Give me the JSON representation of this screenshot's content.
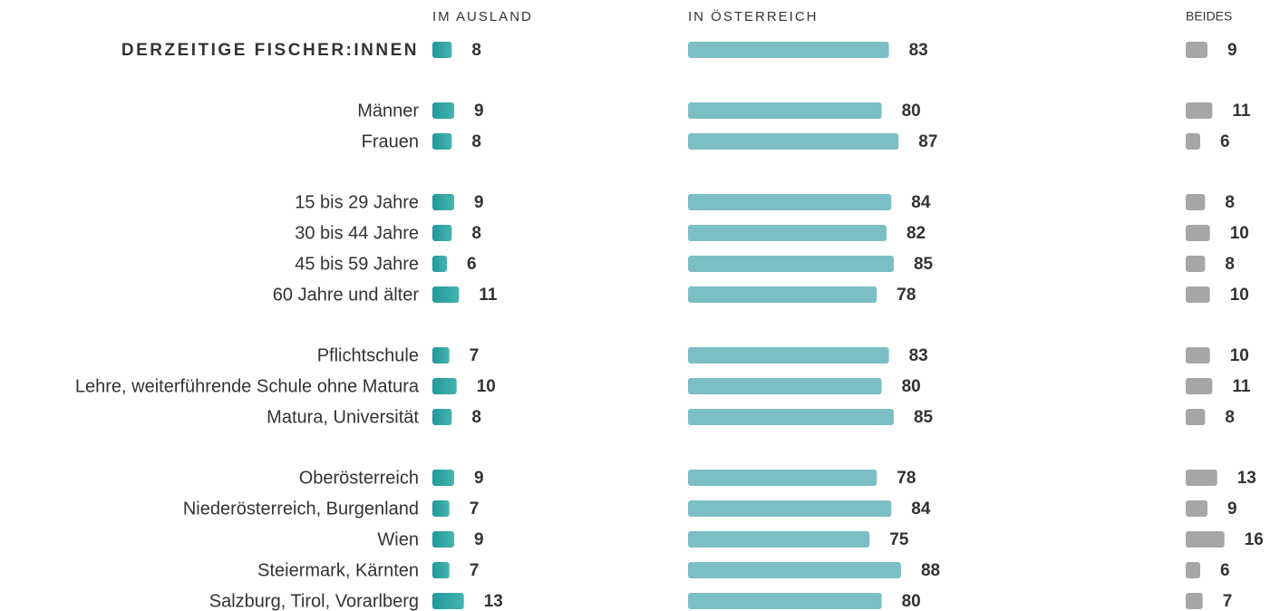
{
  "chart_data": {
    "type": "bar",
    "orientation": "horizontal",
    "categories": [
      "DERZEITIGE FISCHER:INNEN",
      "Männer",
      "Frauen",
      "15 bis 29 Jahre",
      "30 bis 44 Jahre",
      "45 bis 59 Jahre",
      "60 Jahre und älter",
      "Pflichtschule",
      "Lehre, weiterführende Schule ohne Matura",
      "Matura, Universität",
      "Oberösterreich",
      "Niederösterreich, Burgenland",
      "Wien",
      "Steiermark, Kärnten",
      "Salzburg, Tirol, Vorarlberg"
    ],
    "series": [
      {
        "name": "IM AUSLAND",
        "color": "#2aa3a2",
        "values": [
          8,
          9,
          8,
          9,
          8,
          6,
          11,
          7,
          10,
          8,
          9,
          7,
          9,
          7,
          13
        ]
      },
      {
        "name": "IN ÖSTERREICH",
        "color": "#7bbfc4",
        "values": [
          83,
          80,
          87,
          84,
          82,
          85,
          78,
          83,
          80,
          85,
          78,
          84,
          75,
          88,
          80
        ]
      },
      {
        "name": "BEIDES",
        "color": "#a6a6a6",
        "values": [
          9,
          11,
          6,
          8,
          10,
          8,
          10,
          10,
          11,
          8,
          13,
          9,
          16,
          6,
          7
        ]
      }
    ]
  }
}
